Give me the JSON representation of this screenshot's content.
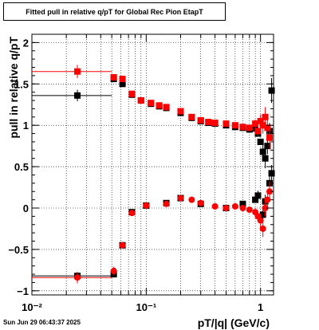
{
  "chart_data": {
    "type": "scatter",
    "title": "Fitted pull in relative q/pT for Global Rec Pion EtapT",
    "xlabel": "pT/|q| (GeV/c)",
    "ylabel": "pull in relative q/pT",
    "xscale": "log",
    "xlim": [
      0.01,
      1.3
    ],
    "ylim": [
      -1.05,
      2.1
    ],
    "grid": true,
    "x_ticks": [
      {
        "value": 0.01,
        "label": "10⁻²"
      },
      {
        "value": 0.1,
        "label": "10⁻¹"
      },
      {
        "value": 1,
        "label": "1"
      }
    ],
    "y_ticks": [
      {
        "value": -1,
        "label": "−1"
      },
      {
        "value": -0.5,
        "label": "−0.5"
      },
      {
        "value": 0,
        "label": "0"
      },
      {
        "value": 0.5,
        "label": "0.5"
      },
      {
        "value": 1,
        "label": "1"
      },
      {
        "value": 1.5,
        "label": "1.5"
      },
      {
        "value": 2,
        "label": "2"
      }
    ],
    "series": [
      {
        "color": "#000000",
        "marker": "square",
        "points": [
          {
            "x": 0.025,
            "y": 1.36,
            "xerr": [
              0.01,
              0.05
            ],
            "yerr": 0.07
          },
          {
            "x": 0.052,
            "y": 1.56
          },
          {
            "x": 0.062,
            "y": 1.5
          },
          {
            "x": 0.075,
            "y": 1.37
          },
          {
            "x": 0.09,
            "y": 1.3
          },
          {
            "x": 0.11,
            "y": 1.26
          },
          {
            "x": 0.13,
            "y": 1.23
          },
          {
            "x": 0.15,
            "y": 1.21
          },
          {
            "x": 0.2,
            "y": 1.15
          },
          {
            "x": 0.25,
            "y": 1.09
          },
          {
            "x": 0.3,
            "y": 1.05
          },
          {
            "x": 0.35,
            "y": 1.03
          },
          {
            "x": 0.4,
            "y": 1.02
          },
          {
            "x": 0.5,
            "y": 1.0
          },
          {
            "x": 0.6,
            "y": 0.98
          },
          {
            "x": 0.7,
            "y": 0.97
          },
          {
            "x": 0.8,
            "y": 0.95
          },
          {
            "x": 0.9,
            "y": 0.96
          },
          {
            "x": 0.95,
            "y": 0.9
          },
          {
            "x": 1.0,
            "y": 0.8
          },
          {
            "x": 1.05,
            "y": 0.68,
            "yerr": 0.1
          },
          {
            "x": 1.1,
            "y": 0.6,
            "yerr": 0.12
          },
          {
            "x": 1.15,
            "y": 0.75,
            "yerr": 0.1
          },
          {
            "x": 1.2,
            "y": 0.93,
            "yerr": 0.1
          },
          {
            "x": 1.25,
            "y": 1.42,
            "yerr": 0.15
          },
          {
            "x": 0.025,
            "y": -0.82,
            "xerr": [
              0.01,
              0.05
            ]
          },
          {
            "x": 0.052,
            "y": -0.8
          },
          {
            "x": 0.062,
            "y": -0.45
          },
          {
            "x": 0.075,
            "y": -0.05
          },
          {
            "x": 0.1,
            "y": 0.03
          },
          {
            "x": 0.15,
            "y": 0.06
          },
          {
            "x": 0.2,
            "y": 0.12
          },
          {
            "x": 0.3,
            "y": 0.05
          },
          {
            "x": 0.5,
            "y": 0.0
          },
          {
            "x": 0.7,
            "y": 0.05
          },
          {
            "x": 0.9,
            "y": 0.1
          },
          {
            "x": 0.95,
            "y": 0.15,
            "yerr": 0.06
          },
          {
            "x": 1.05,
            "y": -0.08,
            "yerr": 0.06
          },
          {
            "x": 1.1,
            "y": 0.08,
            "yerr": 0.08
          },
          {
            "x": 1.2,
            "y": 0.3,
            "yerr": 0.1
          },
          {
            "x": 1.25,
            "y": 0.42,
            "yerr": 0.1
          }
        ]
      },
      {
        "color": "#ff0000",
        "marker": "square",
        "points": [
          {
            "x": 0.025,
            "y": 1.65,
            "xerr": [
              0.01,
              0.05
            ],
            "yerr": 0.08
          },
          {
            "x": 0.052,
            "y": 1.58
          },
          {
            "x": 0.062,
            "y": 1.56
          },
          {
            "x": 0.075,
            "y": 1.38
          },
          {
            "x": 0.09,
            "y": 1.3
          },
          {
            "x": 0.11,
            "y": 1.27
          },
          {
            "x": 0.13,
            "y": 1.24
          },
          {
            "x": 0.15,
            "y": 1.22
          },
          {
            "x": 0.2,
            "y": 1.17
          },
          {
            "x": 0.25,
            "y": 1.1
          },
          {
            "x": 0.3,
            "y": 1.06
          },
          {
            "x": 0.35,
            "y": 1.04
          },
          {
            "x": 0.4,
            "y": 1.03
          },
          {
            "x": 0.5,
            "y": 1.02
          },
          {
            "x": 0.6,
            "y": 1.0
          },
          {
            "x": 0.7,
            "y": 0.98
          },
          {
            "x": 0.8,
            "y": 0.97
          },
          {
            "x": 0.9,
            "y": 1.02,
            "yerr": 0.05
          },
          {
            "x": 0.95,
            "y": 0.93,
            "yerr": 0.06
          },
          {
            "x": 1.0,
            "y": 1.05,
            "yerr": 0.08
          },
          {
            "x": 1.05,
            "y": 1.0,
            "yerr": 0.1
          },
          {
            "x": 1.1,
            "y": 1.1,
            "yerr": 0.12
          },
          {
            "x": 1.15,
            "y": 0.97,
            "yerr": 0.12
          },
          {
            "x": 1.2,
            "y": 0.85,
            "yerr": 0.14
          }
        ]
      },
      {
        "color": "#ff0000",
        "marker": "circle",
        "points": [
          {
            "x": 0.025,
            "y": -0.84,
            "xerr": [
              0.01,
              0.05
            ],
            "yerr": 0.07
          },
          {
            "x": 0.052,
            "y": -0.76,
            "yerr": 0.05
          },
          {
            "x": 0.062,
            "y": -0.45
          },
          {
            "x": 0.075,
            "y": -0.06
          },
          {
            "x": 0.1,
            "y": 0.03
          },
          {
            "x": 0.15,
            "y": 0.05
          },
          {
            "x": 0.2,
            "y": 0.12
          },
          {
            "x": 0.25,
            "y": 0.1
          },
          {
            "x": 0.3,
            "y": 0.06
          },
          {
            "x": 0.4,
            "y": 0.02
          },
          {
            "x": 0.5,
            "y": 0.0
          },
          {
            "x": 0.6,
            "y": 0.02
          },
          {
            "x": 0.7,
            "y": 0.0
          },
          {
            "x": 0.8,
            "y": -0.02
          },
          {
            "x": 0.9,
            "y": -0.05,
            "yerr": 0.05
          },
          {
            "x": 0.95,
            "y": -0.1,
            "yerr": 0.06
          },
          {
            "x": 1.0,
            "y": -0.15,
            "yerr": 0.08
          },
          {
            "x": 1.05,
            "y": -0.25,
            "yerr": 0.1
          },
          {
            "x": 1.1,
            "y": 0.0,
            "yerr": 0.1
          },
          {
            "x": 1.15,
            "y": 0.1,
            "yerr": 0.1
          },
          {
            "x": 1.2,
            "y": 0.2,
            "yerr": 0.12
          }
        ]
      }
    ]
  },
  "footer": {
    "datestamp": "Sun Jun 29 06:43:37 2025"
  }
}
